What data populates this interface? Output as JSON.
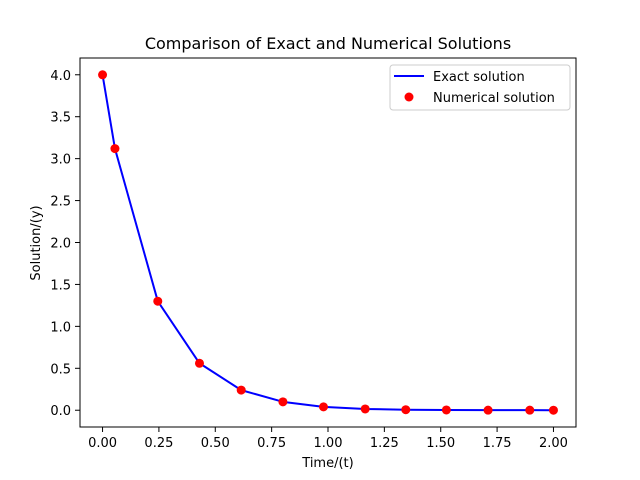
{
  "chart_data": {
    "type": "line",
    "title": "Comparison of Exact and Numerical Solutions",
    "xlabel": "Time/(t)",
    "ylabel": "Solution/(y)",
    "xlim": [
      -0.1,
      2.1
    ],
    "ylim": [
      -0.2,
      4.2
    ],
    "xticks": [
      0.0,
      0.25,
      0.5,
      0.75,
      1.0,
      1.25,
      1.5,
      1.75,
      2.0
    ],
    "xtick_labels": [
      "0.00",
      "0.25",
      "0.50",
      "0.75",
      "1.00",
      "1.25",
      "1.50",
      "1.75",
      "2.00"
    ],
    "yticks": [
      0.0,
      0.5,
      1.0,
      1.5,
      2.0,
      2.5,
      3.0,
      3.5,
      4.0
    ],
    "ytick_labels": [
      "0.0",
      "0.5",
      "1.0",
      "1.5",
      "2.0",
      "2.5",
      "3.0",
      "3.5",
      "4.0"
    ],
    "grid": false,
    "legend_position": "top-right",
    "series": [
      {
        "name": "Exact solution",
        "style": "line",
        "color": "#0000ff",
        "x": [
          0.0,
          0.055,
          0.245,
          0.43,
          0.615,
          0.8,
          0.98,
          1.165,
          1.345,
          1.525,
          1.71,
          1.895,
          2.0
        ],
        "y": [
          4.0,
          3.12,
          1.3,
          0.56,
          0.24,
          0.1,
          0.04,
          0.015,
          0.006,
          0.003,
          0.001,
          0.0005,
          0.0003
        ]
      },
      {
        "name": "Numerical solution",
        "style": "marker",
        "color": "#ff0000",
        "x": [
          0.0,
          0.055,
          0.245,
          0.43,
          0.615,
          0.8,
          0.98,
          1.165,
          1.345,
          1.525,
          1.71,
          1.895,
          2.0
        ],
        "y": [
          4.0,
          3.12,
          1.3,
          0.56,
          0.24,
          0.1,
          0.04,
          0.015,
          0.006,
          0.003,
          0.001,
          0.0005,
          0.0003
        ]
      }
    ]
  }
}
